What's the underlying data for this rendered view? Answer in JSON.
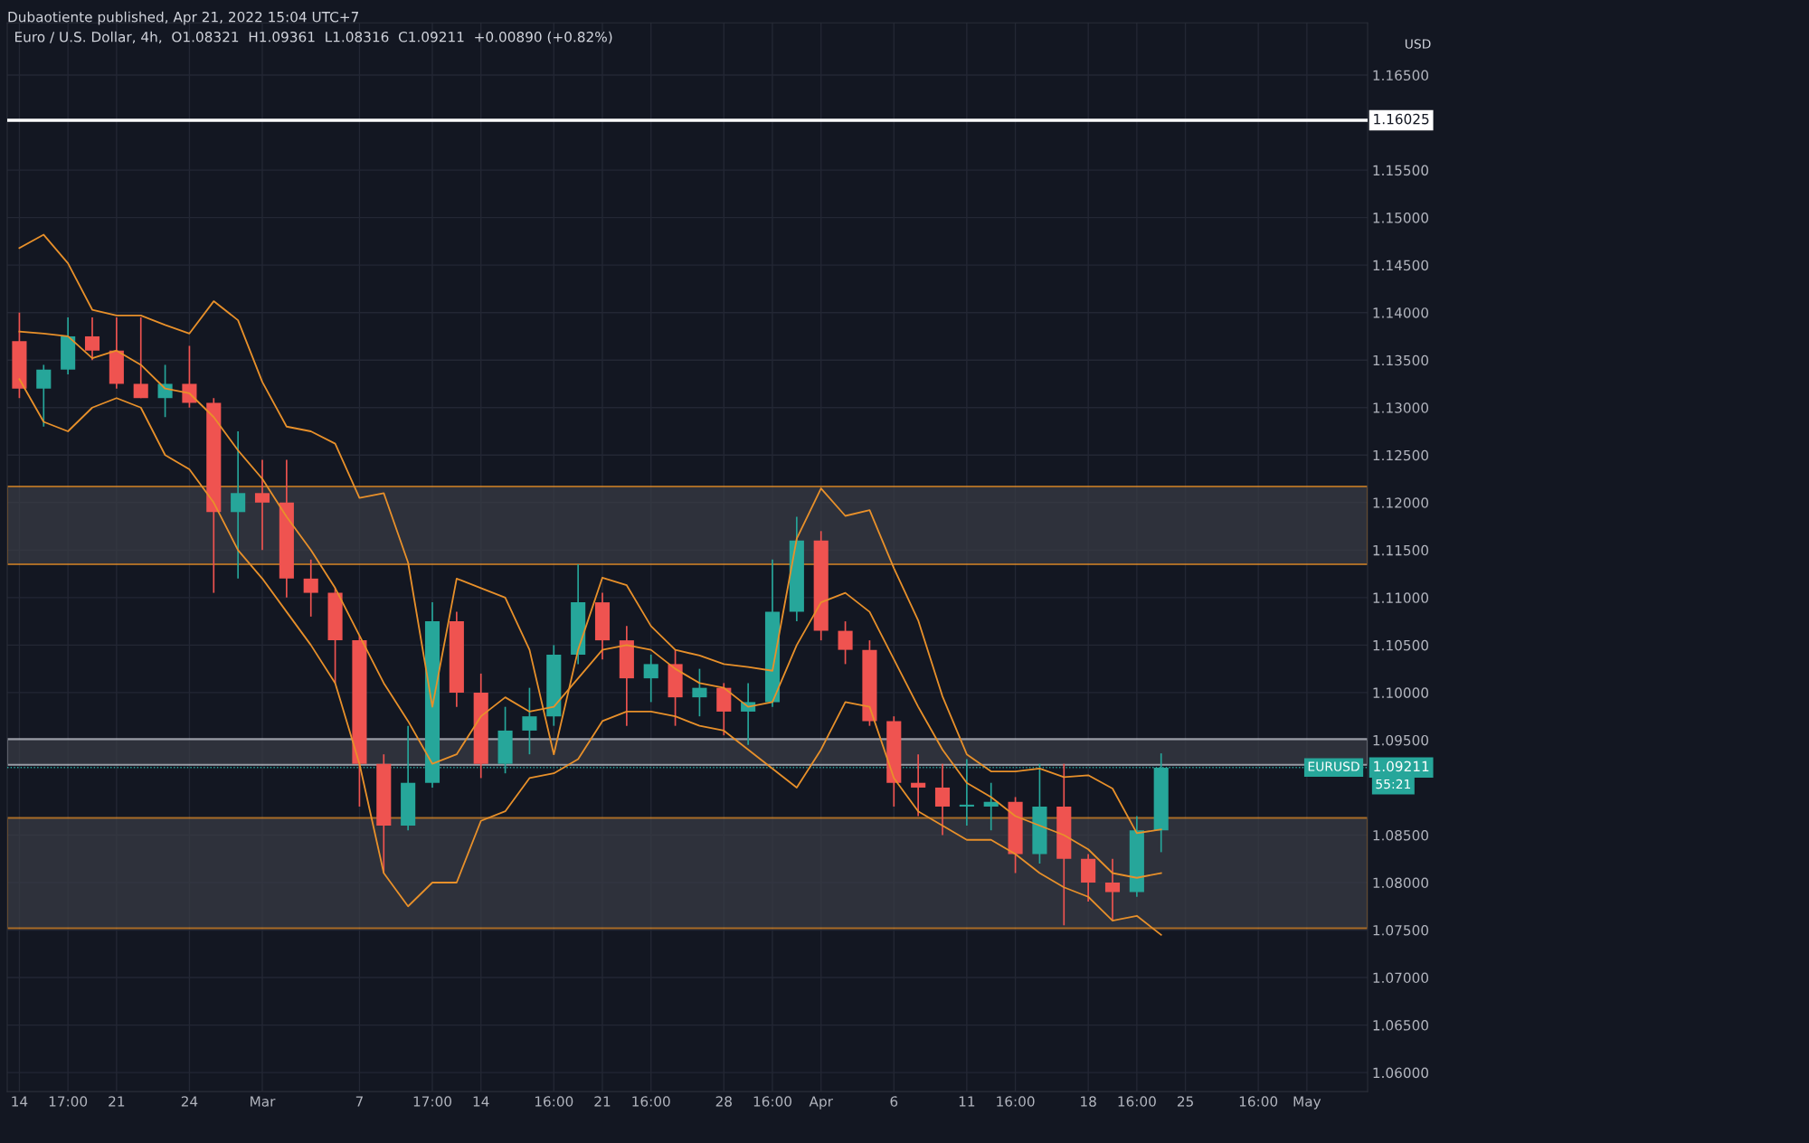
{
  "chart_data": {
    "type": "candlestick",
    "title": "Euro / U.S. Dollar, 4h,  O1.08321  H1.09361  L1.08316  C1.09211  +0.00890 (+0.82%)",
    "subtitle": "Dubaotiente published, Apr 21, 2022 15:04 UTC+7",
    "categories": [
      "14",
      null,
      "17:00",
      null,
      "21",
      null,
      null,
      "24",
      null,
      null,
      "Mar",
      null,
      null,
      null,
      "7",
      null,
      null,
      "17:00",
      null,
      "14",
      null,
      null,
      "16:00",
      null,
      "21",
      null,
      "16:00",
      null,
      null,
      "28",
      null,
      "16:00",
      null,
      "Apr",
      null,
      null,
      "6",
      null,
      null,
      "11",
      null,
      "16:00",
      null,
      null,
      "18",
      null,
      "16:00",
      null,
      "25",
      null,
      null,
      "16:00",
      null,
      "May",
      null,
      null
    ],
    "ohlc": [
      [
        1.137,
        1.14,
        1.131,
        1.132
      ],
      [
        1.132,
        1.1345,
        1.128,
        1.134
      ],
      [
        1.134,
        1.1395,
        1.1335,
        1.1375
      ],
      [
        1.1375,
        1.1395,
        1.135,
        1.136
      ],
      [
        1.136,
        1.1395,
        1.132,
        1.1325
      ],
      [
        1.1325,
        1.1395,
        1.131,
        1.131
      ],
      [
        1.131,
        1.1345,
        1.129,
        1.1325
      ],
      [
        1.1325,
        1.1365,
        1.13,
        1.1305
      ],
      [
        1.1305,
        1.131,
        1.1105,
        1.119
      ],
      [
        1.119,
        1.1275,
        1.112,
        1.121
      ],
      [
        1.121,
        1.1245,
        1.115,
        1.12
      ],
      [
        1.12,
        1.1245,
        1.11,
        1.112
      ],
      [
        1.112,
        1.114,
        1.108,
        1.1105
      ],
      [
        1.1105,
        1.111,
        1.101,
        1.1055
      ],
      [
        1.1055,
        1.106,
        1.088,
        1.0925
      ],
      [
        1.0925,
        1.0935,
        1.081,
        1.086
      ],
      [
        1.086,
        1.0965,
        1.0855,
        1.0905
      ],
      [
        1.0905,
        1.1095,
        1.09,
        1.1075
      ],
      [
        1.1075,
        1.1085,
        1.0985,
        1.1
      ],
      [
        1.1,
        1.102,
        1.091,
        1.0925
      ],
      [
        1.0925,
        1.0985,
        1.0915,
        1.096
      ],
      [
        1.096,
        1.1005,
        1.0935,
        1.0975
      ],
      [
        1.0975,
        1.105,
        1.0965,
        1.104
      ],
      [
        1.104,
        1.1135,
        1.103,
        1.1095
      ],
      [
        1.1095,
        1.1105,
        1.1035,
        1.1055
      ],
      [
        1.1055,
        1.107,
        1.0965,
        1.1015
      ],
      [
        1.1015,
        1.104,
        1.099,
        1.103
      ],
      [
        1.103,
        1.1045,
        1.0965,
        1.0995
      ],
      [
        1.0995,
        1.1025,
        1.0975,
        1.1005
      ],
      [
        1.1005,
        1.101,
        1.0955,
        1.098
      ],
      [
        1.098,
        1.101,
        1.0945,
        1.099
      ],
      [
        1.099,
        1.114,
        1.0985,
        1.1085
      ],
      [
        1.1085,
        1.1185,
        1.1075,
        1.116
      ],
      [
        1.116,
        1.117,
        1.1055,
        1.1065
      ],
      [
        1.1065,
        1.1075,
        1.103,
        1.1045
      ],
      [
        1.1045,
        1.1055,
        1.0965,
        1.097
      ],
      [
        1.097,
        1.0975,
        1.088,
        1.0905
      ],
      [
        1.0905,
        1.0935,
        1.087,
        1.09
      ],
      [
        1.09,
        1.0925,
        1.085,
        1.088
      ],
      [
        1.088,
        1.093,
        1.086,
        1.088
      ],
      [
        1.088,
        1.0905,
        1.0855,
        1.0885
      ],
      [
        1.0885,
        1.089,
        1.081,
        1.083
      ],
      [
        1.083,
        1.0925,
        1.082,
        1.088
      ],
      [
        1.088,
        1.0925,
        1.0755,
        1.0825
      ],
      [
        1.0825,
        1.083,
        1.078,
        1.08
      ],
      [
        1.08,
        1.0825,
        1.076,
        1.079
      ],
      [
        1.079,
        1.087,
        1.0785,
        1.0855
      ],
      [
        1.0855,
        1.0936,
        1.0832,
        1.0921
      ],
      null,
      null,
      null,
      null,
      null,
      null,
      null,
      null
    ],
    "series": [
      {
        "type": "line",
        "color": "#e8902a",
        "values": [
          1.1468,
          1.1482,
          1.1452,
          1.1403,
          1.1397,
          1.1397,
          1.1387,
          1.1378,
          1.1412,
          1.1392,
          1.1327,
          1.128,
          1.1275,
          1.1262,
          1.1205,
          1.121,
          1.1137,
          1.0985,
          1.112,
          1.111,
          1.11,
          1.1045,
          1.0935,
          1.1045,
          1.1121,
          1.1113,
          1.107,
          1.1045,
          1.1039,
          1.103,
          1.1027,
          1.1023,
          1.1162,
          1.1215,
          1.1186,
          1.1192,
          1.1131,
          1.1076,
          1.0996,
          1.0935,
          1.0917,
          1.0917,
          1.092,
          1.0911,
          1.0913,
          1.0899,
          1.0852,
          1.0856,
          null,
          null,
          null,
          null,
          null,
          null,
          null,
          null
        ]
      },
      {
        "type": "line",
        "color": "#e8902a",
        "values": [
          1.138,
          1.1378,
          1.1375,
          1.1352,
          1.136,
          1.1345,
          1.132,
          1.1315,
          1.129,
          1.1255,
          1.1225,
          1.1185,
          1.115,
          1.111,
          1.106,
          1.101,
          1.097,
          1.0925,
          1.0935,
          1.0975,
          1.0995,
          1.098,
          1.0985,
          1.1015,
          1.1045,
          1.105,
          1.1045,
          1.1025,
          1.101,
          1.1005,
          1.0985,
          1.099,
          1.105,
          1.1095,
          1.1105,
          1.1085,
          1.1035,
          1.0985,
          1.094,
          1.0905,
          1.089,
          1.087,
          1.086,
          1.085,
          1.0835,
          1.081,
          1.0805,
          1.081,
          null,
          null,
          null,
          null,
          null,
          null,
          null,
          null
        ]
      },
      {
        "type": "line",
        "color": "#e8902a",
        "values": [
          1.133,
          1.1285,
          1.1275,
          1.13,
          1.131,
          1.13,
          1.125,
          1.1235,
          1.12,
          1.115,
          1.112,
          1.1085,
          1.105,
          1.101,
          1.0925,
          1.081,
          1.0775,
          1.08,
          1.08,
          1.0865,
          1.0875,
          1.091,
          1.0915,
          1.093,
          1.097,
          1.098,
          1.098,
          1.0975,
          1.0965,
          1.096,
          1.094,
          1.092,
          1.09,
          1.094,
          1.099,
          1.0985,
          1.091,
          1.0875,
          1.086,
          1.0845,
          1.0845,
          1.083,
          1.081,
          1.0795,
          1.0785,
          1.076,
          1.0765,
          1.0745,
          null,
          null,
          null,
          null,
          null,
          null,
          null,
          null
        ]
      }
    ],
    "ylim": [
      1.058,
      1.1705
    ],
    "yticks": [
      {
        "value": 1.06,
        "label": "1.06000"
      },
      {
        "value": 1.065,
        "label": "1.06500"
      },
      {
        "value": 1.07,
        "label": "1.07000"
      },
      {
        "value": 1.075,
        "label": "1.07500"
      },
      {
        "value": 1.08,
        "label": "1.08000"
      },
      {
        "value": 1.085,
        "label": "1.08500"
      },
      {
        "value": 1.095,
        "label": "1.09500"
      },
      {
        "value": 1.1,
        "label": "1.10000"
      },
      {
        "value": 1.105,
        "label": "1.10500"
      },
      {
        "value": 1.11,
        "label": "1.11000"
      },
      {
        "value": 1.115,
        "label": "1.11500"
      },
      {
        "value": 1.12,
        "label": "1.12000"
      },
      {
        "value": 1.125,
        "label": "1.12500"
      },
      {
        "value": 1.13,
        "label": "1.13000"
      },
      {
        "value": 1.135,
        "label": "1.13500"
      },
      {
        "value": 1.14,
        "label": "1.14000"
      },
      {
        "value": 1.145,
        "label": "1.14500"
      },
      {
        "value": 1.15,
        "label": "1.15000"
      },
      {
        "value": 1.155,
        "label": "1.15500"
      },
      {
        "value": 1.165,
        "label": "1.16500"
      }
    ],
    "ref_lines": [
      {
        "axis": "y",
        "value": 1.16025,
        "label": "1.16025",
        "color": "#ffffff",
        "line_style": "solid"
      },
      {
        "axis": "y",
        "value": 1.09211,
        "label": "1.09211",
        "color": "#26a69a",
        "line_style": "dotted"
      }
    ],
    "bands": [
      {
        "axis": "y",
        "from": 1.1135,
        "to": 1.1217,
        "color": "#e8902a"
      },
      {
        "axis": "y",
        "from": 1.0752,
        "to": 1.0868,
        "color": "#e8902a"
      },
      {
        "axis": "y",
        "from": 1.0924,
        "to": 1.0951,
        "color": "#d1d4dc"
      }
    ],
    "annotations": [
      "USD",
      "EURUSD",
      "55:21"
    ],
    "grid": true,
    "legend": false
  }
}
